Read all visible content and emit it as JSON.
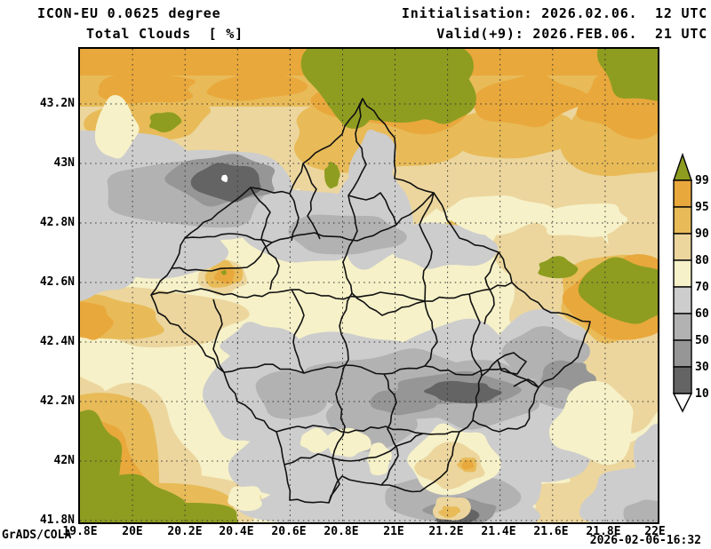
{
  "header": {
    "model_line": "ICON-EU 0.0625 degree",
    "variable_line": "Total Clouds  [ %]",
    "init_line": "Initialisation: 2026.02.06.  12 UTC",
    "valid_line": "Valid(+9): 2026.FEB.06.  21 UTC"
  },
  "axes": {
    "lat_labels": [
      "43.2N",
      "43N",
      "42.8N",
      "42.6N",
      "42.4N",
      "42.2N",
      "42N",
      "41.8N"
    ],
    "lon_labels": [
      "19.8E",
      "20E",
      "20.2E",
      "20.4E",
      "20.6E",
      "20.8E",
      "21E",
      "21.2E",
      "21.4E",
      "21.6E",
      "21.8E",
      "22E"
    ]
  },
  "legend": {
    "unit": "%",
    "tick_labels": [
      "99.5",
      "95",
      "90",
      "80",
      "70",
      "60",
      "50",
      "30",
      "10"
    ],
    "segment_colors_top_to_bottom": [
      "#e9a83c",
      "#e8bb58",
      "#ecd69e",
      "#f6f1c8",
      "#cdcdcd",
      "#b2b2b2",
      "#969696",
      "#646464"
    ],
    "over_color": "#8e9d20",
    "under_color": "#ffffff",
    "outline_color": "#000000"
  },
  "map": {
    "region": "Kosovo municipalities",
    "field": "total cloud cover",
    "lat_range": [
      "41.8N",
      "43.2N"
    ],
    "lon_range": [
      "19.8E",
      "22E"
    ]
  },
  "footer": {
    "credit": "GrADS/COLA",
    "timestamp": "2026-02-06-16:32"
  }
}
